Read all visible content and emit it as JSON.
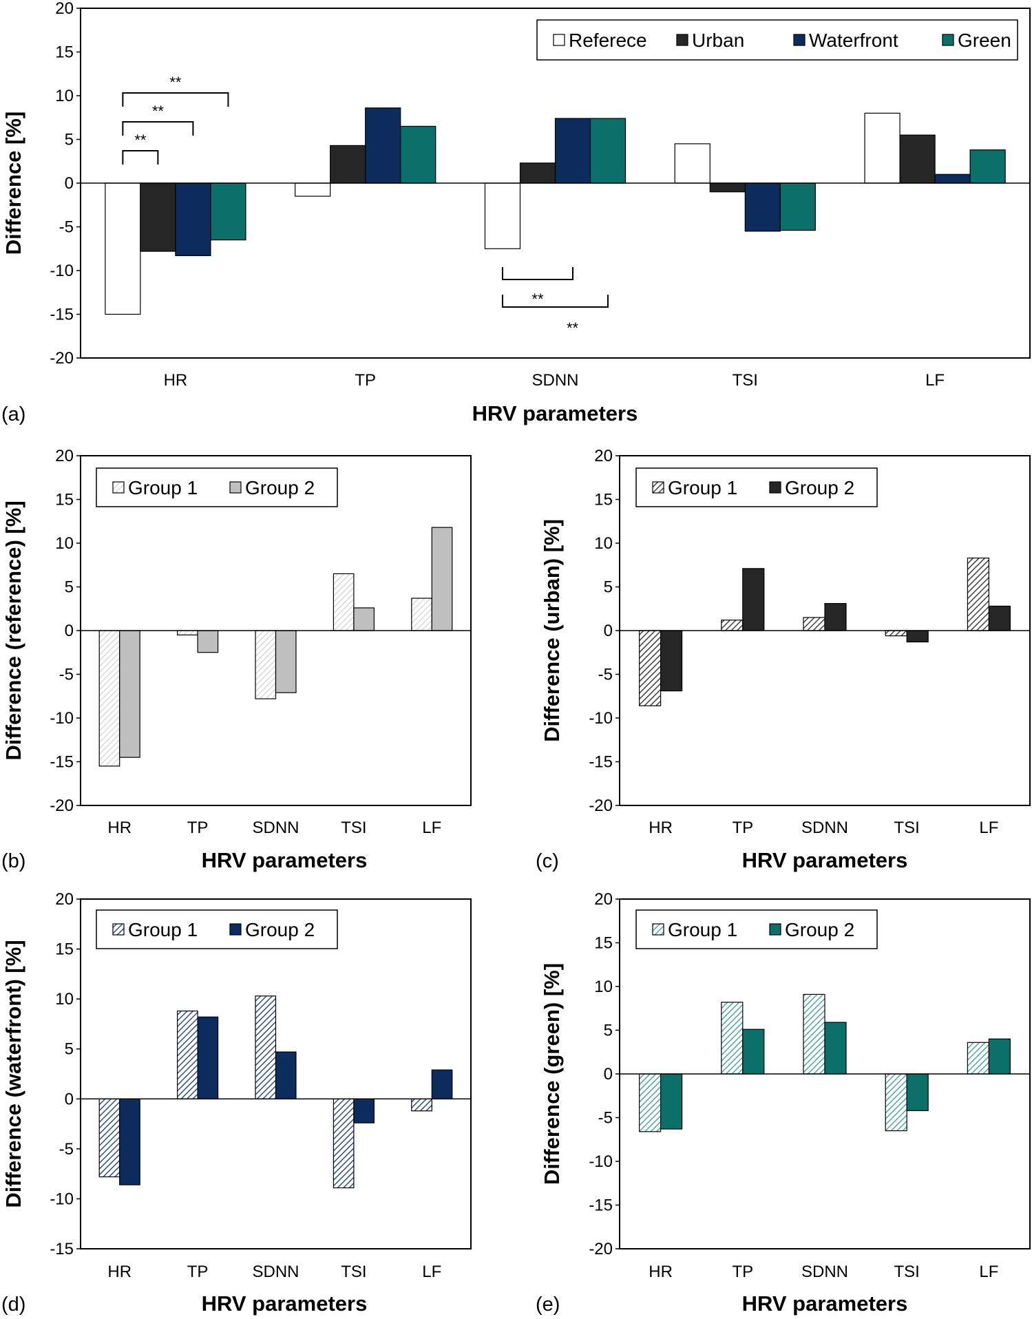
{
  "chart_data": [
    {
      "id": "a",
      "type": "bar",
      "panel_label": "(a)",
      "title": "",
      "xlabel": "HRV parameters",
      "ylabel": "Difference [%]",
      "categories": [
        "HR",
        "TP",
        "SDNN",
        "TSI",
        "LF"
      ],
      "ylim": [
        -20,
        20
      ],
      "yticks": [
        -20,
        -15,
        -10,
        -5,
        0,
        5,
        10,
        15,
        20
      ],
      "grid": false,
      "legend_position": "top-right",
      "series": [
        {
          "name": "Referece",
          "color": "#ffffff",
          "values": [
            -15,
            -1.5,
            -7.5,
            4.5,
            8.0
          ]
        },
        {
          "name": "Urban",
          "color": "#262626",
          "values": [
            -7.8,
            4.3,
            2.3,
            -1.0,
            5.5
          ]
        },
        {
          "name": "Waterfront",
          "color": "#0d2c5e",
          "values": [
            -8.3,
            8.6,
            7.4,
            -5.5,
            1.0
          ]
        },
        {
          "name": "Green",
          "color": "#0b706a",
          "values": [
            -6.5,
            6.5,
            7.4,
            -5.4,
            3.8
          ]
        }
      ],
      "annotations": [
        {
          "category": "HR",
          "from_series": 0,
          "to_series": 1,
          "text": "**",
          "side": "above",
          "level": 1
        },
        {
          "category": "HR",
          "from_series": 0,
          "to_series": 2,
          "text": "**",
          "side": "above",
          "level": 2
        },
        {
          "category": "HR",
          "from_series": 0,
          "to_series": 3,
          "text": "**",
          "side": "above",
          "level": 3
        },
        {
          "category": "SDNN",
          "from_series": 0,
          "to_series": 2,
          "text": "**",
          "side": "below",
          "level": 1
        },
        {
          "category": "SDNN",
          "from_series": 0,
          "to_series": 3,
          "text": "**",
          "side": "below",
          "level": 2
        }
      ]
    },
    {
      "id": "b",
      "type": "bar",
      "panel_label": "(b)",
      "xlabel": "HRV parameters",
      "ylabel": "Difference (reference) [%]",
      "categories": [
        "HR",
        "TP",
        "SDNN",
        "TSI",
        "LF"
      ],
      "ylim": [
        -20,
        20
      ],
      "yticks": [
        -20,
        -15,
        -10,
        -5,
        0,
        5,
        10,
        15,
        20
      ],
      "grid": false,
      "legend_position": "top-left",
      "series": [
        {
          "name": "Group 1",
          "color": "#d9d9d9",
          "pattern": "hatch",
          "values": [
            -15.5,
            -0.5,
            -7.8,
            6.5,
            3.7
          ]
        },
        {
          "name": "Group 2",
          "color": "#bfbfbf",
          "values": [
            -14.5,
            -2.5,
            -7.1,
            2.6,
            11.8
          ]
        }
      ]
    },
    {
      "id": "c",
      "type": "bar",
      "panel_label": "(c)",
      "xlabel": "HRV parameters",
      "ylabel": "Difference (urban) [%]",
      "categories": [
        "HR",
        "TP",
        "SDNN",
        "TSI",
        "LF"
      ],
      "ylim": [
        -20,
        20
      ],
      "yticks": [
        -20,
        -15,
        -10,
        -5,
        0,
        5,
        10,
        15,
        20
      ],
      "grid": false,
      "legend_position": "top-left",
      "series": [
        {
          "name": "Group 1",
          "color": "#404040",
          "pattern": "hatch",
          "values": [
            -8.6,
            1.2,
            1.5,
            -0.6,
            8.3
          ]
        },
        {
          "name": "Group 2",
          "color": "#262626",
          "values": [
            -6.9,
            7.1,
            3.1,
            -1.3,
            2.8
          ]
        }
      ]
    },
    {
      "id": "d",
      "type": "bar",
      "panel_label": "(d)",
      "xlabel": "HRV parameters",
      "ylabel": "Difference (waterfront) [%]",
      "categories": [
        "HR",
        "TP",
        "SDNN",
        "TSI",
        "LF"
      ],
      "ylim": [
        -15,
        20
      ],
      "yticks": [
        -15,
        -10,
        -5,
        0,
        5,
        10,
        15,
        20
      ],
      "grid": false,
      "legend_position": "top-left",
      "series": [
        {
          "name": "Group 1",
          "color": "#2f4f7f",
          "pattern": "hatch",
          "values": [
            -7.8,
            8.8,
            10.3,
            -8.9,
            -1.2
          ]
        },
        {
          "name": "Group 2",
          "color": "#0d2c5e",
          "values": [
            -8.6,
            8.2,
            4.7,
            -2.4,
            2.9
          ]
        }
      ]
    },
    {
      "id": "e",
      "type": "bar",
      "panel_label": "(e)",
      "xlabel": "HRV parameters",
      "ylabel": "Difference (green) [%]",
      "categories": [
        "HR",
        "TP",
        "SDNN",
        "TSI",
        "LF"
      ],
      "ylim": [
        -20,
        20
      ],
      "yticks": [
        -20,
        -15,
        -10,
        -5,
        0,
        5,
        10,
        15,
        20
      ],
      "grid": false,
      "legend_position": "top-left",
      "series": [
        {
          "name": "Group 1",
          "color": "#4aa8a0",
          "pattern": "hatch",
          "values": [
            -6.6,
            8.2,
            9.1,
            -6.5,
            3.6
          ]
        },
        {
          "name": "Group 2",
          "color": "#0b706a",
          "values": [
            -6.3,
            5.1,
            5.9,
            -4.2,
            4.0
          ]
        }
      ]
    }
  ]
}
